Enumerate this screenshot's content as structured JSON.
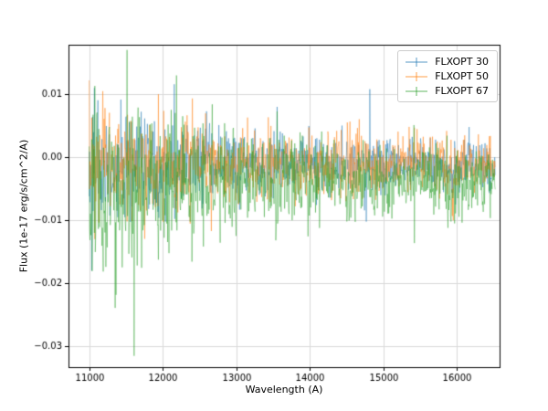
{
  "chart_data": {
    "type": "line",
    "title": "",
    "xlabel": "Wavelength (A)",
    "ylabel": "Flux (1e-17 erg/s/cm^2/A)",
    "xlim": [
      10720,
      16580
    ],
    "ylim": [
      -0.0333,
      0.0179
    ],
    "grid": true,
    "legend_position": "upper right",
    "xticks": {
      "values": [
        11000,
        12000,
        13000,
        14000,
        15000,
        16000
      ],
      "labels": [
        "11000",
        "12000",
        "13000",
        "14000",
        "15000",
        "16000"
      ]
    },
    "yticks": {
      "values": [
        0.01,
        0.0,
        -0.01,
        -0.02,
        -0.03
      ],
      "labels": [
        "0.01",
        "0.00",
        "−0.01",
        "−0.02",
        "−0.03"
      ]
    },
    "x_start": 11000,
    "x_end": 16520,
    "x_step": 6,
    "series": [
      {
        "name": "FLXOPT 30",
        "color": "#1f77b4",
        "alpha": 0.5,
        "baseline": -0.0012,
        "sigma_start": 0.0052,
        "sigma_end": 0.0019,
        "tau": 1400,
        "spike_prob": 0.03,
        "spike_mult": 2.1,
        "seed": 42
      },
      {
        "name": "FLXOPT 50",
        "color": "#ff7f0e",
        "alpha": 0.5,
        "baseline": -0.001,
        "sigma_start": 0.0048,
        "sigma_end": 0.0021,
        "tau": 1600,
        "spike_prob": 0.04,
        "spike_mult": 2.0,
        "seed": 7
      },
      {
        "name": "FLXOPT 67",
        "color": "#2ca02c",
        "alpha": 0.5,
        "baseline": -0.004,
        "sigma_start": 0.0085,
        "sigma_end": 0.0024,
        "tau": 1300,
        "spike_prob": 0.05,
        "spike_mult": 1.9,
        "seed": 1337
      }
    ]
  }
}
